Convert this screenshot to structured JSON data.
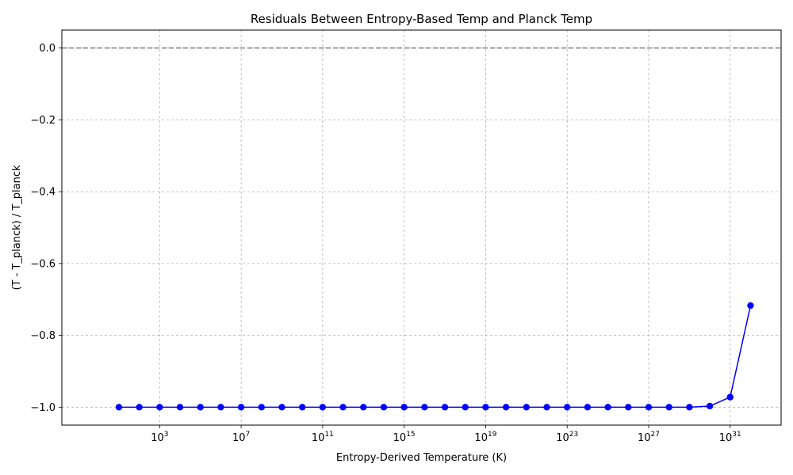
{
  "chart_data": {
    "type": "line",
    "title": "Residuals Between Entropy-Based Temp and Planck Temp",
    "xlabel": "Entropy-Derived Temperature (K)",
    "ylabel": "(T - T_planck) / T_planck",
    "xscale": "log",
    "x_log10_lim": [
      -1.8,
      33.5
    ],
    "ylim": [
      -1.05,
      0.05
    ],
    "grid": true,
    "x_tick_exponents": [
      3,
      7,
      11,
      15,
      19,
      23,
      27,
      31
    ],
    "y_ticks": [
      "0.0",
      "−0.2",
      "−0.4",
      "−0.6",
      "−0.8",
      "−1.0"
    ],
    "y_tick_values": [
      0.0,
      -0.2,
      -0.4,
      -0.6,
      -0.8,
      -1.0
    ],
    "reference_line": {
      "y": 0.0,
      "style": "dashed",
      "color": "#808080"
    },
    "series": [
      {
        "color": "#0000ff",
        "marker": "circle",
        "x": [
          10.0,
          100.0,
          1000.0,
          10000.0,
          100000.0,
          1000000.0,
          10000000.0,
          100000000.0,
          1000000000.0,
          10000000000.0,
          100000000000.0,
          1000000000000.0,
          10000000000000.0,
          100000000000000.0,
          1000000000000000.0,
          1e+16,
          1e+17,
          1e+18,
          1e+19,
          1e+20,
          1e+21,
          1e+22,
          1e+23,
          1e+24,
          1e+25,
          1e+26,
          1e+27,
          1e+28,
          1e+29,
          1e+30,
          1e+31,
          1e+32
        ],
        "y": [
          -1.0,
          -1.0,
          -1.0,
          -1.0,
          -1.0,
          -1.0,
          -1.0,
          -1.0,
          -1.0,
          -1.0,
          -1.0,
          -1.0,
          -1.0,
          -1.0,
          -1.0,
          -1.0,
          -1.0,
          -1.0,
          -1.0,
          -1.0,
          -1.0,
          -1.0,
          -1.0,
          -1.0,
          -1.0,
          -1.0,
          -1.0,
          -1.0,
          -1.0,
          -0.997,
          -0.972,
          -0.717
        ]
      }
    ]
  }
}
